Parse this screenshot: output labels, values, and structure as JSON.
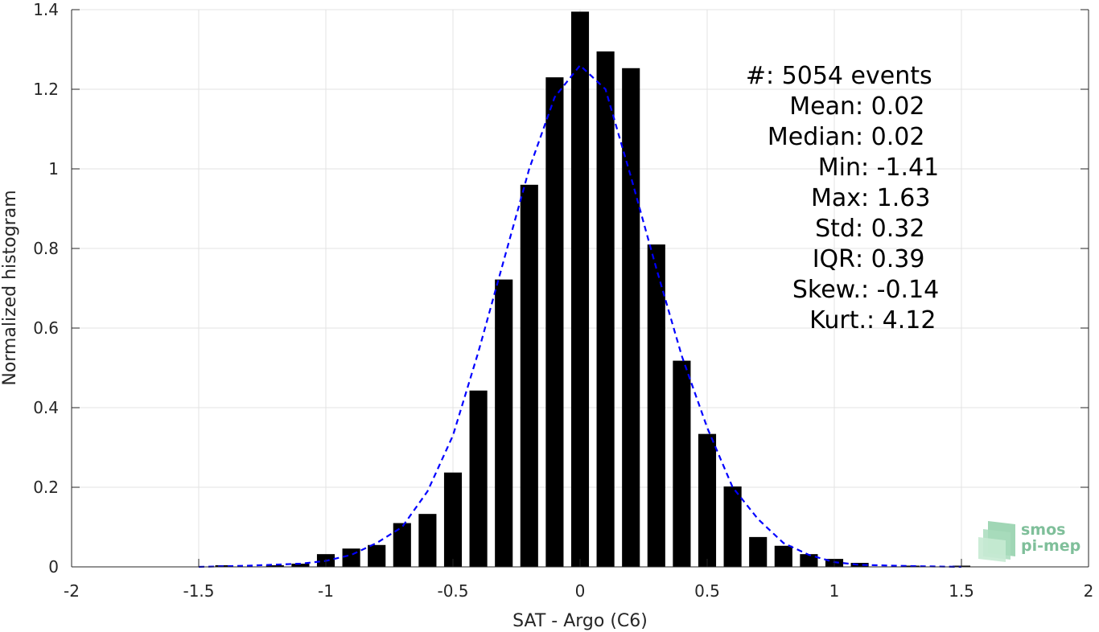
{
  "chart_data": {
    "type": "bar",
    "xlabel": "SAT - Argo (C6)",
    "ylabel": "Normalized histogram",
    "xlim": [
      -2,
      2
    ],
    "ylim": [
      0,
      1.4
    ],
    "x_ticks": [
      -2,
      -1.5,
      -1,
      -0.5,
      0,
      0.5,
      1,
      1.5,
      2
    ],
    "x_tick_labels": [
      "-2",
      "-1.5",
      "-1",
      "-0.5",
      "0",
      "0.5",
      "1",
      "1.5",
      "2"
    ],
    "y_ticks": [
      0,
      0.2,
      0.4,
      0.6,
      0.8,
      1.0,
      1.2,
      1.4
    ],
    "y_tick_labels": [
      "0",
      "0.2",
      "0.4",
      "0.6",
      "0.8",
      "1",
      "1.2",
      "1.4"
    ],
    "grid": true,
    "bar_width": 0.07,
    "series": [
      {
        "type": "bar",
        "color": "#000000",
        "x": [
          -1.4,
          -1.2,
          -1.1,
          -1.0,
          -0.9,
          -0.8,
          -0.7,
          -0.6,
          -0.5,
          -0.4,
          -0.3,
          -0.2,
          -0.1,
          0.0,
          0.1,
          0.2,
          0.3,
          0.4,
          0.5,
          0.6,
          0.7,
          0.8,
          0.9,
          1.0,
          1.1,
          1.3,
          1.5
        ],
        "values": [
          0.004,
          0.004,
          0.008,
          0.032,
          0.046,
          0.055,
          0.11,
          0.133,
          0.237,
          0.443,
          0.722,
          0.96,
          1.23,
          1.395,
          1.295,
          1.253,
          0.81,
          0.518,
          0.334,
          0.202,
          0.075,
          0.053,
          0.032,
          0.02,
          0.01,
          0.003,
          0.003
        ]
      },
      {
        "type": "line",
        "style": "dashed",
        "color": "#0000ff",
        "x": [
          -1.5,
          -1.3,
          -1.1,
          -1.0,
          -0.9,
          -0.8,
          -0.7,
          -0.6,
          -0.5,
          -0.4,
          -0.3,
          -0.2,
          -0.1,
          0.0,
          0.1,
          0.2,
          0.3,
          0.4,
          0.5,
          0.6,
          0.7,
          0.8,
          0.9,
          1.0,
          1.1,
          1.3,
          1.5
        ],
        "values": [
          0.0,
          0.003,
          0.008,
          0.015,
          0.03,
          0.06,
          0.1,
          0.19,
          0.33,
          0.54,
          0.77,
          1.0,
          1.18,
          1.26,
          1.2,
          0.98,
          0.75,
          0.53,
          0.35,
          0.2,
          0.12,
          0.06,
          0.03,
          0.012,
          0.005,
          0.002,
          0.0
        ]
      }
    ],
    "annotations": {
      "stats": [
        {
          "label": "#  ",
          "value": ": 5054 events"
        },
        {
          "label": "Mean ",
          "value": ": 0.02"
        },
        {
          "label": "Median ",
          "value": ": 0.02"
        },
        {
          "label": "Min ",
          "value": ": -1.41"
        },
        {
          "label": "Max ",
          "value": ": 1.63"
        },
        {
          "label": "Std ",
          "value": ": 0.32"
        },
        {
          "label": "IQR ",
          "value": ": 0.39"
        },
        {
          "label": "Skew. ",
          "value": ": -0.14"
        },
        {
          "label": "Kurt. ",
          "value": ": 4.12"
        }
      ]
    }
  },
  "logo": {
    "line1": "smos",
    "line2": "pi-mep",
    "color": "#7fbf9a"
  }
}
